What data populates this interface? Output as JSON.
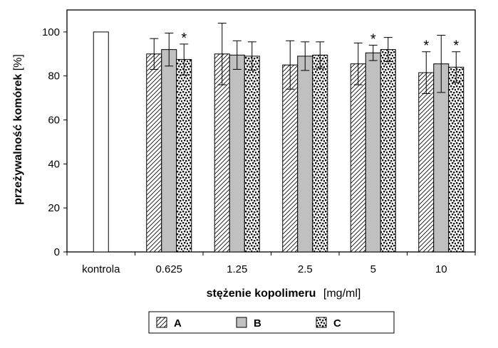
{
  "chart_data": {
    "type": "bar",
    "xlabel": "stężenie kopolimeru",
    "xlabel_unit": "[mg/ml]",
    "ylabel": "przeżywalność komórek",
    "ylabel_unit": "[%]",
    "ylim": [
      0,
      110
    ],
    "yticks": [
      0,
      20,
      40,
      60,
      80,
      100
    ],
    "grid": false,
    "legend_position": "bottom",
    "control": {
      "label": "kontrola",
      "value": 100
    },
    "categories": [
      "0.625",
      "1.25",
      "2.5",
      "5",
      "10"
    ],
    "series": [
      {
        "name": "A",
        "values": [
          90,
          90,
          85,
          85.5,
          81.5
        ],
        "errors": [
          7,
          14,
          11,
          9.5,
          9.5
        ],
        "significant": [
          false,
          false,
          false,
          false,
          true
        ]
      },
      {
        "name": "B",
        "values": [
          92,
          89.5,
          89,
          90.5,
          85.5
        ],
        "errors": [
          7.5,
          6.5,
          6.5,
          3.5,
          13
        ],
        "significant": [
          false,
          false,
          false,
          true,
          false
        ]
      },
      {
        "name": "C",
        "values": [
          87.5,
          89,
          89.5,
          92,
          84
        ],
        "errors": [
          7,
          6.5,
          6,
          5.5,
          7
        ],
        "significant": [
          true,
          false,
          false,
          false,
          true
        ]
      }
    ],
    "significance_marker": "*"
  }
}
